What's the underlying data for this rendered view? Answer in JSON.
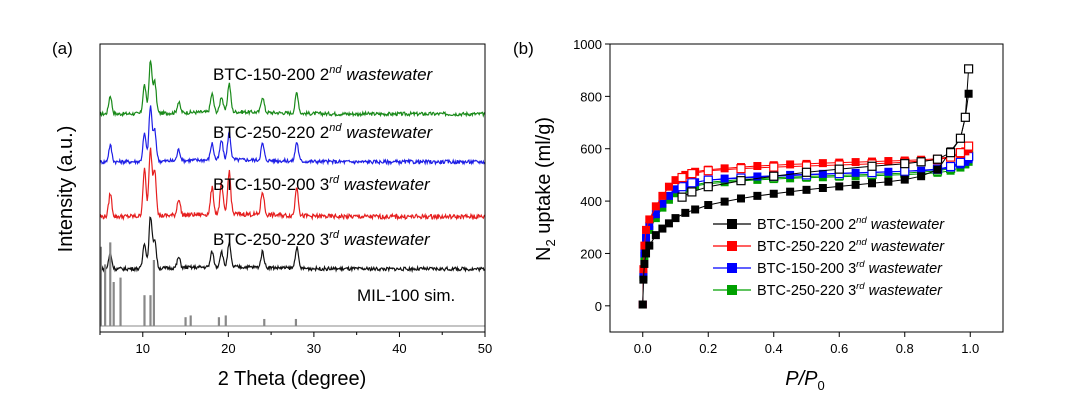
{
  "chart_data": [
    {
      "panel_label": "(a)",
      "type": "line",
      "xlabel": "2 Theta (degree)",
      "ylabel": "Intensity (a.u.)",
      "xlim": [
        5,
        50
      ],
      "x_ticks": [
        10,
        20,
        30,
        40,
        50
      ],
      "y_ticks_shown": false,
      "grid": false,
      "series": [
        {
          "name": "BTC-150-200",
          "name_suffix": "2",
          "name_sup": "nd",
          "name_italic": "wastewater",
          "color": "#1a8a1a",
          "offset": 4,
          "peaks": [
            [
              6.2,
              0.35
            ],
            [
              10.2,
              0.55
            ],
            [
              10.9,
              1.0
            ],
            [
              11.4,
              0.6
            ],
            [
              14.2,
              0.2
            ],
            [
              18.1,
              0.35
            ],
            [
              19.2,
              0.3
            ],
            [
              20.1,
              0.55
            ],
            [
              24.0,
              0.3
            ],
            [
              28.0,
              0.4
            ]
          ]
        },
        {
          "name": "BTC-250-220",
          "name_suffix": "2",
          "name_sup": "nd",
          "name_italic": "wastewater",
          "color": "#1f1fe6",
          "offset": 3,
          "peaks": [
            [
              6.2,
              0.3
            ],
            [
              10.2,
              0.5
            ],
            [
              10.9,
              1.0
            ],
            [
              11.4,
              0.55
            ],
            [
              14.2,
              0.2
            ],
            [
              18.1,
              0.3
            ],
            [
              19.2,
              0.35
            ],
            [
              20.1,
              0.5
            ],
            [
              24.0,
              0.3
            ],
            [
              28.0,
              0.35
            ]
          ]
        },
        {
          "name": "BTC-150-200",
          "name_suffix": "3",
          "name_sup": "rd",
          "name_italic": "wastewater",
          "color": "#e61f1f",
          "offset": 2,
          "peaks": [
            [
              6.2,
              0.35
            ],
            [
              10.2,
              0.7
            ],
            [
              10.9,
              1.0
            ],
            [
              11.4,
              0.7
            ],
            [
              14.2,
              0.25
            ],
            [
              18.1,
              0.4
            ],
            [
              19.2,
              0.45
            ],
            [
              20.1,
              0.65
            ],
            [
              24.0,
              0.35
            ],
            [
              28.0,
              0.45
            ]
          ]
        },
        {
          "name": "BTC-250-220",
          "name_suffix": "3",
          "name_sup": "rd",
          "name_italic": "wastewater",
          "color": "#111111",
          "offset": 1,
          "peaks": [
            [
              6.2,
              0.3
            ],
            [
              10.2,
              0.5
            ],
            [
              10.9,
              1.0
            ],
            [
              11.4,
              0.55
            ],
            [
              14.2,
              0.2
            ],
            [
              18.1,
              0.3
            ],
            [
              19.2,
              0.3
            ],
            [
              20.1,
              0.45
            ],
            [
              24.0,
              0.3
            ],
            [
              28.0,
              0.4
            ]
          ]
        },
        {
          "name": "MIL-100 sim.",
          "color": "#888888",
          "offset": 0,
          "style": "sticks",
          "peaks": [
            [
              5.1,
              0.9
            ],
            [
              5.6,
              0.7
            ],
            [
              6.2,
              0.95
            ],
            [
              6.6,
              0.5
            ],
            [
              7.4,
              0.55
            ],
            [
              10.2,
              0.35
            ],
            [
              10.9,
              0.35
            ],
            [
              11.3,
              0.75
            ],
            [
              15.0,
              0.1
            ],
            [
              15.6,
              0.12
            ],
            [
              18.9,
              0.1
            ],
            [
              19.7,
              0.12
            ],
            [
              24.2,
              0.08
            ],
            [
              27.9,
              0.08
            ]
          ]
        }
      ]
    },
    {
      "panel_label": "(b)",
      "type": "scatter",
      "xlabel": "P/P",
      "xlabel_sub": "0",
      "ylabel_main": "N",
      "ylabel_sub": "2",
      "ylabel_rest": " uptake (ml/g)",
      "xlim": [
        -0.1,
        1.1
      ],
      "ylim": [
        -100,
        1000
      ],
      "x_ticks": [
        0.0,
        0.2,
        0.4,
        0.6,
        0.8,
        1.0
      ],
      "x_tick_labels": [
        "0.0",
        "0.2",
        "0.4",
        "0.6",
        "0.8",
        "1.0"
      ],
      "y_ticks": [
        0,
        200,
        400,
        600,
        800,
        1000
      ],
      "grid": false,
      "legend_position": "center-right",
      "series": [
        {
          "name": "BTC-150-200",
          "name_suffix": "2",
          "name_sup": "nd",
          "name_italic": "wastewater",
          "color": "#000000",
          "adsorption": [
            [
              0.0,
              5
            ],
            [
              0.002,
              100
            ],
            [
              0.005,
              160
            ],
            [
              0.01,
              200
            ],
            [
              0.02,
              230
            ],
            [
              0.04,
              270
            ],
            [
              0.06,
              295
            ],
            [
              0.08,
              315
            ],
            [
              0.1,
              335
            ],
            [
              0.13,
              355
            ],
            [
              0.16,
              368
            ],
            [
              0.2,
              385
            ],
            [
              0.25,
              398
            ],
            [
              0.3,
              410
            ],
            [
              0.35,
              420
            ],
            [
              0.4,
              428
            ],
            [
              0.45,
              436
            ],
            [
              0.5,
              443
            ],
            [
              0.55,
              450
            ],
            [
              0.6,
              456
            ],
            [
              0.65,
              462
            ],
            [
              0.7,
              468
            ],
            [
              0.75,
              474
            ],
            [
              0.8,
              482
            ],
            [
              0.85,
              495
            ],
            [
              0.9,
              520
            ],
            [
              0.94,
              590
            ],
            [
              0.97,
              640
            ],
            [
              0.985,
              720
            ],
            [
              0.995,
              810
            ]
          ],
          "desorption": [
            [
              0.995,
              905
            ],
            [
              0.985,
              720
            ],
            [
              0.97,
              640
            ],
            [
              0.94,
              585
            ],
            [
              0.9,
              560
            ],
            [
              0.85,
              550
            ],
            [
              0.8,
              543
            ],
            [
              0.7,
              533
            ],
            [
              0.6,
              522
            ],
            [
              0.5,
              510
            ],
            [
              0.4,
              495
            ],
            [
              0.3,
              478
            ],
            [
              0.2,
              455
            ],
            [
              0.15,
              435
            ],
            [
              0.12,
              415
            ]
          ]
        },
        {
          "name": "BTC-250-220",
          "name_suffix": "2",
          "name_sup": "nd",
          "name_italic": "wastewater",
          "color": "#ff0000",
          "adsorption": [
            [
              0.0,
              5
            ],
            [
              0.002,
              140
            ],
            [
              0.005,
              230
            ],
            [
              0.01,
              290
            ],
            [
              0.02,
              330
            ],
            [
              0.04,
              380
            ],
            [
              0.06,
              420
            ],
            [
              0.08,
              455
            ],
            [
              0.1,
              480
            ],
            [
              0.13,
              500
            ],
            [
              0.16,
              512
            ],
            [
              0.2,
              520
            ],
            [
              0.25,
              525
            ],
            [
              0.3,
              530
            ],
            [
              0.35,
              534
            ],
            [
              0.4,
              537
            ],
            [
              0.45,
              540
            ],
            [
              0.5,
              542
            ],
            [
              0.55,
              545
            ],
            [
              0.6,
              547
            ],
            [
              0.65,
              549
            ],
            [
              0.7,
              551
            ],
            [
              0.75,
              553
            ],
            [
              0.8,
              555
            ],
            [
              0.85,
              558
            ],
            [
              0.9,
              562
            ],
            [
              0.94,
              570
            ],
            [
              0.97,
              580
            ],
            [
              0.985,
              590
            ],
            [
              0.995,
              600
            ]
          ],
          "desorption": [
            [
              0.995,
              610
            ],
            [
              0.97,
              585
            ],
            [
              0.94,
              568
            ],
            [
              0.9,
              558
            ],
            [
              0.8,
              548
            ],
            [
              0.7,
              542
            ],
            [
              0.6,
              538
            ],
            [
              0.5,
              534
            ],
            [
              0.4,
              530
            ],
            [
              0.3,
              524
            ],
            [
              0.2,
              516
            ],
            [
              0.15,
              505
            ],
            [
              0.12,
              490
            ]
          ]
        },
        {
          "name": "BTC-150-200",
          "name_suffix": "3",
          "name_sup": "rd",
          "name_italic": "wastewater",
          "color": "#0000ff",
          "adsorption": [
            [
              0.0,
              5
            ],
            [
              0.002,
              120
            ],
            [
              0.005,
              200
            ],
            [
              0.01,
              260
            ],
            [
              0.02,
              305
            ],
            [
              0.04,
              350
            ],
            [
              0.06,
              390
            ],
            [
              0.08,
              420
            ],
            [
              0.1,
              445
            ],
            [
              0.13,
              462
            ],
            [
              0.16,
              472
            ],
            [
              0.2,
              480
            ],
            [
              0.25,
              486
            ],
            [
              0.3,
              490
            ],
            [
              0.35,
              494
            ],
            [
              0.4,
              497
            ],
            [
              0.45,
              500
            ],
            [
              0.5,
              502
            ],
            [
              0.55,
              504
            ],
            [
              0.6,
              506
            ],
            [
              0.65,
              508
            ],
            [
              0.7,
              510
            ],
            [
              0.75,
              512
            ],
            [
              0.8,
              514
            ],
            [
              0.85,
              516
            ],
            [
              0.9,
              520
            ],
            [
              0.94,
              528
            ],
            [
              0.97,
              540
            ],
            [
              0.985,
              550
            ],
            [
              0.995,
              560
            ]
          ],
          "desorption": [
            [
              0.995,
              570
            ],
            [
              0.97,
              548
            ],
            [
              0.94,
              532
            ],
            [
              0.9,
              522
            ],
            [
              0.8,
              514
            ],
            [
              0.7,
              509
            ],
            [
              0.6,
              505
            ],
            [
              0.5,
              500
            ],
            [
              0.4,
              495
            ],
            [
              0.3,
              488
            ],
            [
              0.2,
              480
            ],
            [
              0.15,
              470
            ],
            [
              0.12,
              455
            ]
          ]
        },
        {
          "name": "BTC-250-220",
          "name_suffix": "3",
          "name_sup": "rd",
          "name_italic": "wastewater",
          "color": "#00a000",
          "adsorption": [
            [
              0.0,
              5
            ],
            [
              0.002,
              110
            ],
            [
              0.005,
              190
            ],
            [
              0.01,
              250
            ],
            [
              0.02,
              290
            ],
            [
              0.04,
              335
            ],
            [
              0.06,
              375
            ],
            [
              0.08,
              405
            ],
            [
              0.1,
              430
            ],
            [
              0.13,
              448
            ],
            [
              0.16,
              458
            ],
            [
              0.2,
              466
            ],
            [
              0.25,
              472
            ],
            [
              0.3,
              477
            ],
            [
              0.35,
              481
            ],
            [
              0.4,
              484
            ],
            [
              0.45,
              487
            ],
            [
              0.5,
              489
            ],
            [
              0.55,
              491
            ],
            [
              0.6,
              493
            ],
            [
              0.65,
              495
            ],
            [
              0.7,
              497
            ],
            [
              0.75,
              499
            ],
            [
              0.8,
              501
            ],
            [
              0.85,
              504
            ],
            [
              0.9,
              508
            ],
            [
              0.94,
              516
            ],
            [
              0.97,
              528
            ],
            [
              0.985,
              540
            ],
            [
              0.995,
              550
            ]
          ],
          "desorption": [
            [
              0.995,
              575
            ],
            [
              0.97,
              545
            ],
            [
              0.94,
              525
            ],
            [
              0.9,
              515
            ],
            [
              0.8,
              507
            ],
            [
              0.7,
              502
            ],
            [
              0.6,
              498
            ],
            [
              0.5,
              494
            ],
            [
              0.4,
              489
            ],
            [
              0.3,
              482
            ],
            [
              0.2,
              472
            ],
            [
              0.15,
              460
            ],
            [
              0.12,
              445
            ]
          ]
        }
      ]
    }
  ]
}
